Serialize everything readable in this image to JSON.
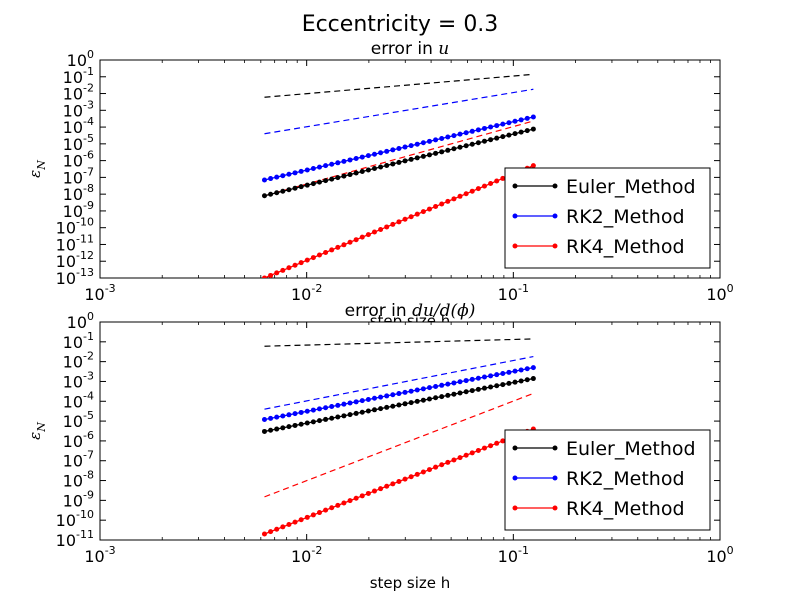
{
  "figure": {
    "suptitle": "Eccentricity = 0.3"
  },
  "chart_data": [
    {
      "type": "line",
      "title_prefix": "error in ",
      "title_math": "u",
      "xlabel": "step size h",
      "ylabel_math": "ε",
      "ylabel_sub": "N",
      "xscale": "log",
      "yscale": "log",
      "xlim": [
        0.001,
        1
      ],
      "ylim": [
        1e-13,
        1
      ],
      "xticks": [
        {
          "base": "10",
          "exp": "-3"
        },
        {
          "base": "10",
          "exp": "-2"
        },
        {
          "base": "10",
          "exp": "-1"
        },
        {
          "base": "10",
          "exp": "0"
        }
      ],
      "yticks": [
        {
          "base": "10",
          "exp": "-13"
        },
        {
          "base": "10",
          "exp": "-12"
        },
        {
          "base": "10",
          "exp": "-11"
        },
        {
          "base": "10",
          "exp": "-10"
        },
        {
          "base": "10",
          "exp": "-9"
        },
        {
          "base": "10",
          "exp": "-8"
        },
        {
          "base": "10",
          "exp": "-7"
        },
        {
          "base": "10",
          "exp": "-6"
        },
        {
          "base": "10",
          "exp": "-5"
        },
        {
          "base": "10",
          "exp": "-4"
        },
        {
          "base": "10",
          "exp": "-3"
        },
        {
          "base": "10",
          "exp": "-2"
        },
        {
          "base": "10",
          "exp": "-1"
        },
        {
          "base": "10",
          "exp": "0"
        }
      ],
      "grid": false,
      "legend_position": "lower-right",
      "x_range": [
        0.00625,
        0.125
      ],
      "points_per_series": 45,
      "series": [
        {
          "name": "Euler_Method",
          "color": "#000000",
          "style": "line-dots",
          "y_start": 8e-09,
          "y_end": 7.6e-05
        },
        {
          "name": "RK2_Method",
          "color": "#0000ff",
          "style": "line-dots",
          "y_start": 7e-08,
          "y_end": 0.0004
        },
        {
          "name": "RK4_Method",
          "color": "#ff0000",
          "style": "line-dots",
          "y_start": 1e-13,
          "y_end": 5e-07
        }
      ],
      "reference_lines": [
        {
          "color": "#000000",
          "style": "dashed",
          "y_start": 0.006,
          "y_end": 0.14
        },
        {
          "color": "#0000ff",
          "style": "dashed",
          "y_start": 4e-05,
          "y_end": 0.018
        },
        {
          "color": "#ff0000",
          "style": "dashed",
          "y_start": 8e-09,
          "y_end": 0.00023
        }
      ]
    },
    {
      "type": "line",
      "title_prefix": "error in ",
      "title_math": "du/d(ϕ)",
      "xlabel": "step size h",
      "ylabel_math": "ε",
      "ylabel_sub": "N",
      "xscale": "log",
      "yscale": "log",
      "xlim": [
        0.001,
        1
      ],
      "ylim": [
        1e-11,
        1
      ],
      "xticks": [
        {
          "base": "10",
          "exp": "-3"
        },
        {
          "base": "10",
          "exp": "-2"
        },
        {
          "base": "10",
          "exp": "-1"
        },
        {
          "base": "10",
          "exp": "0"
        }
      ],
      "yticks": [
        {
          "base": "10",
          "exp": "-11"
        },
        {
          "base": "10",
          "exp": "-10"
        },
        {
          "base": "10",
          "exp": "-9"
        },
        {
          "base": "10",
          "exp": "-8"
        },
        {
          "base": "10",
          "exp": "-7"
        },
        {
          "base": "10",
          "exp": "-6"
        },
        {
          "base": "10",
          "exp": "-5"
        },
        {
          "base": "10",
          "exp": "-4"
        },
        {
          "base": "10",
          "exp": "-3"
        },
        {
          "base": "10",
          "exp": "-2"
        },
        {
          "base": "10",
          "exp": "-1"
        },
        {
          "base": "10",
          "exp": "0"
        }
      ],
      "grid": false,
      "legend_position": "lower-right",
      "x_range": [
        0.00625,
        0.125
      ],
      "points_per_series": 45,
      "series": [
        {
          "name": "Euler_Method",
          "color": "#000000",
          "style": "line-dots",
          "y_start": 3e-06,
          "y_end": 0.0014
        },
        {
          "name": "RK2_Method",
          "color": "#0000ff",
          "style": "line-dots",
          "y_start": 1.2e-05,
          "y_end": 0.005
        },
        {
          "name": "RK4_Method",
          "color": "#ff0000",
          "style": "line-dots",
          "y_start": 2e-11,
          "y_end": 4e-06
        }
      ],
      "reference_lines": [
        {
          "color": "#000000",
          "style": "dashed",
          "y_start": 0.06,
          "y_end": 0.14
        },
        {
          "color": "#0000ff",
          "style": "dashed",
          "y_start": 4e-05,
          "y_end": 0.018
        },
        {
          "color": "#ff0000",
          "style": "dashed",
          "y_start": 1.5e-09,
          "y_end": 0.00025
        }
      ]
    }
  ]
}
